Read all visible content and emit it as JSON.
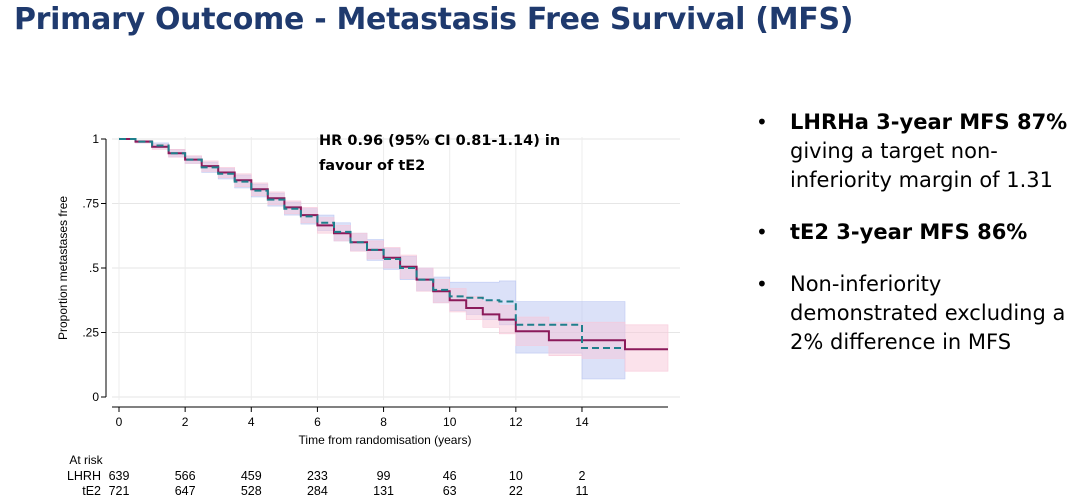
{
  "slide_title": "Primary Outcome - Metastasis Free Survival (MFS)",
  "bullets": [
    {
      "bold": "LHRHa 3-year MFS 87%",
      "text": " giving a target non-inferiority margin of 1.31"
    },
    {
      "bold": "tE2 3-year MFS 86%",
      "text": ""
    },
    {
      "bold": "",
      "text": "Non-inferiority demonstrated excluding a 2% difference in MFS"
    }
  ],
  "chart_data": {
    "type": "line",
    "annotation": [
      "HR 0.96 (95% CI 0.81-1.14) in",
      "favour of tE2"
    ],
    "xlabel": "Time from randomisation (years)",
    "ylabel": "Proportion metastases free",
    "xlim": [
      0,
      16.8
    ],
    "ylim": [
      0,
      1
    ],
    "x_ticks": [
      0,
      2,
      4,
      6,
      8,
      10,
      12,
      14
    ],
    "x_tick_labels": [
      "0",
      "2",
      "4",
      "6",
      "8",
      "10",
      "12",
      "14"
    ],
    "y_ticks": [
      0,
      0.25,
      0.5,
      0.75,
      1
    ],
    "y_tick_labels": [
      "0",
      ".25",
      ".5",
      ".75",
      "1"
    ],
    "grid": true,
    "series": [
      {
        "name": "LHRH",
        "color": "#1f7f8c",
        "band_color": "#b8c4f2",
        "style": "dashed",
        "x": [
          0,
          0.5,
          1,
          1.5,
          2,
          2.5,
          3,
          3.5,
          4,
          4.5,
          5,
          5.5,
          6,
          6.5,
          7,
          7.5,
          8,
          8.5,
          9,
          9.5,
          10,
          10.5,
          11,
          11.5,
          12,
          14,
          15.3
        ],
        "y": [
          1,
          0.99,
          0.975,
          0.945,
          0.92,
          0.89,
          0.865,
          0.835,
          0.8,
          0.765,
          0.73,
          0.7,
          0.675,
          0.64,
          0.6,
          0.57,
          0.535,
          0.5,
          0.455,
          0.415,
          0.39,
          0.385,
          0.375,
          0.37,
          0.28,
          0.19,
          0.19
        ],
        "ci_lower": [
          1,
          0.985,
          0.965,
          0.93,
          0.905,
          0.87,
          0.845,
          0.81,
          0.775,
          0.74,
          0.705,
          0.67,
          0.645,
          0.605,
          0.565,
          0.53,
          0.495,
          0.455,
          0.41,
          0.365,
          0.335,
          0.32,
          0.3,
          0.28,
          0.17,
          0.07,
          0.07
        ],
        "ci_upper": [
          1,
          0.995,
          0.985,
          0.96,
          0.935,
          0.91,
          0.885,
          0.86,
          0.825,
          0.79,
          0.755,
          0.73,
          0.705,
          0.675,
          0.635,
          0.61,
          0.575,
          0.545,
          0.5,
          0.465,
          0.445,
          0.445,
          0.445,
          0.45,
          0.37,
          0.37,
          0.37
        ],
        "at_risk": [
          639,
          566,
          459,
          233,
          99,
          46,
          10,
          2
        ]
      },
      {
        "name": "tE2",
        "color": "#8b1a5a",
        "band_color": "#f7c6d8",
        "style": "solid",
        "x": [
          0,
          0.5,
          1,
          1.5,
          2,
          2.5,
          3,
          3.5,
          4,
          4.5,
          5,
          5.5,
          6,
          6.5,
          7,
          7.5,
          8,
          8.5,
          9,
          9.5,
          10,
          10.5,
          11,
          11.5,
          12,
          13,
          14,
          15.3,
          16.6
        ],
        "y": [
          1,
          0.99,
          0.97,
          0.945,
          0.92,
          0.895,
          0.87,
          0.84,
          0.805,
          0.77,
          0.735,
          0.705,
          0.665,
          0.635,
          0.6,
          0.57,
          0.54,
          0.505,
          0.455,
          0.41,
          0.375,
          0.345,
          0.32,
          0.3,
          0.255,
          0.22,
          0.22,
          0.185,
          0.185
        ],
        "ci_lower": [
          1,
          0.985,
          0.96,
          0.93,
          0.905,
          0.875,
          0.85,
          0.815,
          0.78,
          0.745,
          0.71,
          0.675,
          0.635,
          0.605,
          0.565,
          0.535,
          0.5,
          0.46,
          0.41,
          0.365,
          0.33,
          0.3,
          0.27,
          0.245,
          0.2,
          0.16,
          0.15,
          0.1,
          0.1
        ],
        "ci_upper": [
          1,
          0.995,
          0.98,
          0.96,
          0.935,
          0.915,
          0.89,
          0.865,
          0.83,
          0.795,
          0.76,
          0.735,
          0.695,
          0.665,
          0.635,
          0.605,
          0.58,
          0.55,
          0.5,
          0.455,
          0.42,
          0.39,
          0.37,
          0.355,
          0.31,
          0.29,
          0.29,
          0.28,
          0.28
        ],
        "at_risk": [
          721,
          647,
          528,
          284,
          131,
          63,
          22,
          11
        ]
      }
    ],
    "at_risk_title": "At risk"
  }
}
